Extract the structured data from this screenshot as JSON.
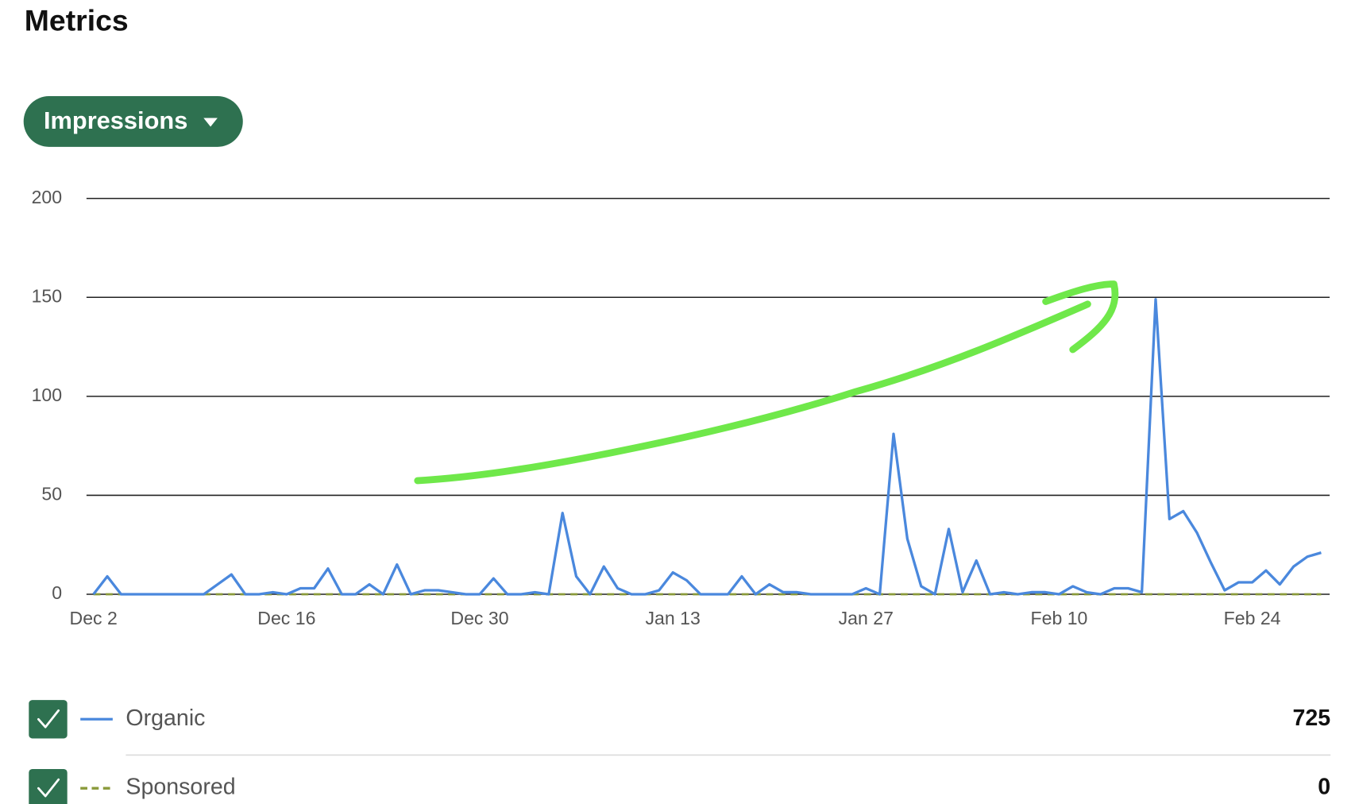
{
  "page": {
    "title": "Metrics",
    "metric_selector": "Impressions"
  },
  "chart_data": {
    "type": "line",
    "categories": [
      "Dec 2",
      null,
      null,
      null,
      null,
      null,
      null,
      null,
      null,
      null,
      null,
      null,
      null,
      null,
      "Dec 16",
      null,
      null,
      null,
      null,
      null,
      null,
      null,
      null,
      null,
      null,
      null,
      null,
      null,
      "Dec 30",
      null,
      null,
      null,
      null,
      null,
      null,
      null,
      null,
      null,
      null,
      null,
      null,
      null,
      "Jan 13",
      null,
      null,
      null,
      null,
      null,
      null,
      null,
      null,
      null,
      null,
      null,
      null,
      null,
      "Jan 27",
      null,
      null,
      null,
      null,
      null,
      null,
      null,
      null,
      null,
      null,
      null,
      null,
      null,
      "Feb 10",
      null,
      null,
      null,
      null,
      null,
      null,
      null,
      null,
      null,
      null,
      null,
      null,
      null,
      "Feb 24",
      null,
      null,
      null,
      null,
      null
    ],
    "series": [
      {
        "name": "Organic",
        "color": "#4a88dd",
        "line_style": "solid",
        "total": 725,
        "values": [
          0,
          9,
          0,
          0,
          0,
          0,
          0,
          0,
          0,
          5,
          10,
          0,
          0,
          1,
          0,
          3,
          3,
          13,
          0,
          0,
          5,
          0,
          15,
          0,
          2,
          2,
          1,
          0,
          0,
          8,
          0,
          0,
          1,
          0,
          41,
          9,
          0,
          14,
          3,
          0,
          0,
          2,
          11,
          7,
          0,
          0,
          0,
          9,
          0,
          5,
          1,
          1,
          0,
          0,
          0,
          0,
          3,
          0,
          81,
          28,
          4,
          0,
          33,
          1,
          17,
          0,
          1,
          0,
          1,
          1,
          0,
          4,
          1,
          0,
          3,
          3,
          1,
          149,
          38,
          42,
          31,
          16,
          2,
          6,
          6,
          12,
          5,
          14,
          19,
          21
        ]
      },
      {
        "name": "Sponsored",
        "color": "#8a9a3a",
        "line_style": "dashed",
        "total": 0,
        "values": [
          0,
          0,
          0,
          0,
          0,
          0,
          0,
          0,
          0,
          0,
          0,
          0,
          0,
          0,
          0,
          0,
          0,
          0,
          0,
          0,
          0,
          0,
          0,
          0,
          0,
          0,
          0,
          0,
          0,
          0,
          0,
          0,
          0,
          0,
          0,
          0,
          0,
          0,
          0,
          0,
          0,
          0,
          0,
          0,
          0,
          0,
          0,
          0,
          0,
          0,
          0,
          0,
          0,
          0,
          0,
          0,
          0,
          0,
          0,
          0,
          0,
          0,
          0,
          0,
          0,
          0,
          0,
          0,
          0,
          0,
          0,
          0,
          0,
          0,
          0,
          0,
          0,
          0,
          0,
          0,
          0,
          0,
          0,
          0,
          0,
          0,
          0,
          0,
          0,
          0
        ]
      }
    ],
    "ylim": [
      0,
      200
    ],
    "yticks": [
      0,
      50,
      100,
      150,
      200
    ],
    "grid": true
  }
}
